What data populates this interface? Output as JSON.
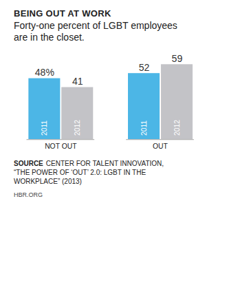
{
  "chart_data": {
    "type": "bar",
    "title": "BEING OUT AT WORK",
    "subtitle": "Forty-one percent of LGBT employees are in the closet.",
    "categories": [
      "NOT OUT",
      "OUT"
    ],
    "series": [
      {
        "name": "2011",
        "color": "#4cb6e6",
        "values": [
          48,
          52
        ],
        "value_labels": [
          "48%",
          "52"
        ]
      },
      {
        "name": "2012",
        "color": "#c3c3c7",
        "values": [
          41,
          59
        ],
        "value_labels": [
          "41",
          "59"
        ]
      }
    ],
    "ylim": [
      0,
      60
    ],
    "data_labels": true,
    "tick_labels": "x",
    "source_label": "SOURCE",
    "source": "CENTER FOR TALENT INNOVATION, “THE POWER OF ‘OUT’ 2.0: LGBT IN THE WORKPLACE” (2013)",
    "credit": "HBR.ORG"
  }
}
